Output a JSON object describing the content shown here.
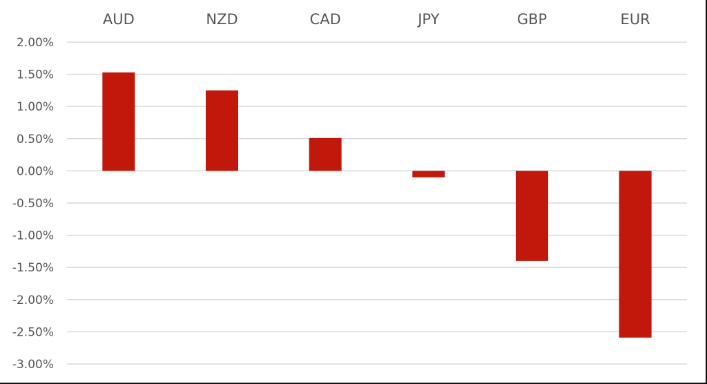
{
  "chart_data": {
    "type": "bar",
    "title": "",
    "xlabel": "",
    "ylabel": "",
    "categories": [
      "AUD",
      "NZD",
      "CAD",
      "JPY",
      "GBP",
      "EUR"
    ],
    "values": [
      1.53,
      1.25,
      0.51,
      -0.1,
      -1.4,
      -2.59
    ],
    "unit": "%",
    "ylim": [
      -3.0,
      2.0
    ],
    "yticks": [
      2.0,
      1.5,
      1.0,
      0.5,
      0.0,
      -0.5,
      -1.0,
      -1.5,
      -2.0,
      -2.5,
      -3.0
    ],
    "ytick_labels": [
      "2.00%",
      "1.50%",
      "1.00%",
      "0.50%",
      "0.00%",
      "-0.50%",
      "-1.00%",
      "-1.50%",
      "-2.00%",
      "-2.50%",
      "-3.00%"
    ],
    "category_label_position": "top",
    "grid": true,
    "legend": null
  },
  "colors": {
    "bar": "#c0180a",
    "grid": "#d9d9d9",
    "text": "#555555"
  }
}
